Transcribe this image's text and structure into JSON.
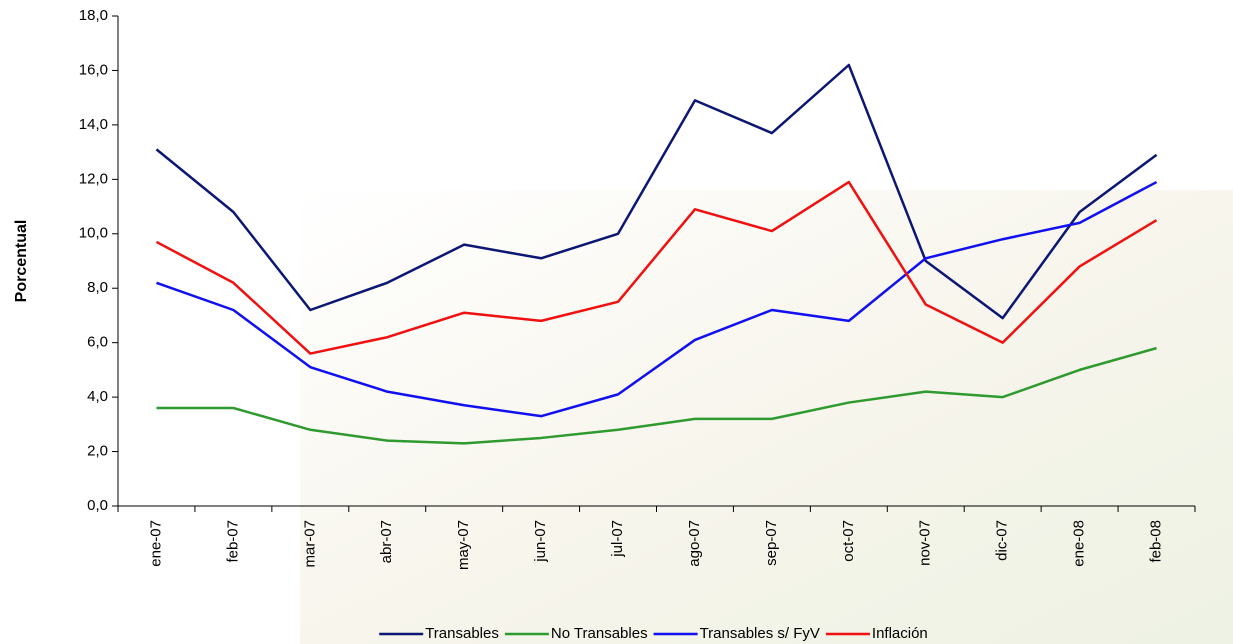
{
  "chart_data": {
    "type": "line",
    "y_label": "Porcentual",
    "categories": [
      "ene-07",
      "feb-07",
      "mar-07",
      "abr-07",
      "may-07",
      "jun-07",
      "jul-07",
      "ago-07",
      "sep-07",
      "oct-07",
      "nov-07",
      "dic-07",
      "ene-08",
      "feb-08"
    ],
    "series": [
      {
        "name": "Transables",
        "color": "#0c1673",
        "values": [
          13.1,
          10.8,
          7.2,
          8.2,
          9.6,
          9.1,
          10.0,
          14.9,
          13.7,
          16.2,
          9.0,
          6.9,
          10.8,
          12.9
        ]
      },
      {
        "name": "No Transables",
        "color": "#2f9a2f",
        "values": [
          3.6,
          3.6,
          2.8,
          2.4,
          2.3,
          2.5,
          2.8,
          3.2,
          3.2,
          3.8,
          4.2,
          4.0,
          5.0,
          5.8
        ]
      },
      {
        "name": "Transables s/ FyV",
        "color": "#1010f0",
        "values": [
          8.2,
          7.2,
          5.1,
          4.2,
          3.7,
          3.3,
          4.1,
          6.1,
          7.2,
          6.8,
          9.1,
          9.8,
          10.4,
          11.9
        ]
      },
      {
        "name": "Inflación",
        "color": "#f01010",
        "values": [
          9.7,
          8.2,
          5.6,
          6.2,
          7.1,
          6.8,
          7.5,
          10.9,
          10.1,
          11.9,
          7.4,
          6.0,
          8.8,
          10.5
        ]
      }
    ],
    "ylim": [
      0,
      18
    ],
    "yticks": [
      {
        "value": 0,
        "label": "0,0"
      },
      {
        "value": 2,
        "label": "2,0"
      },
      {
        "value": 4,
        "label": "4,0"
      },
      {
        "value": 6,
        "label": "6,0"
      },
      {
        "value": 8,
        "label": "8,0"
      },
      {
        "value": 10,
        "label": "10,0"
      },
      {
        "value": 12,
        "label": "12,0"
      },
      {
        "value": 14,
        "label": "14,0"
      },
      {
        "value": 16,
        "label": "16,0"
      },
      {
        "value": 18,
        "label": "18,0"
      }
    ],
    "legend": "bottom"
  }
}
